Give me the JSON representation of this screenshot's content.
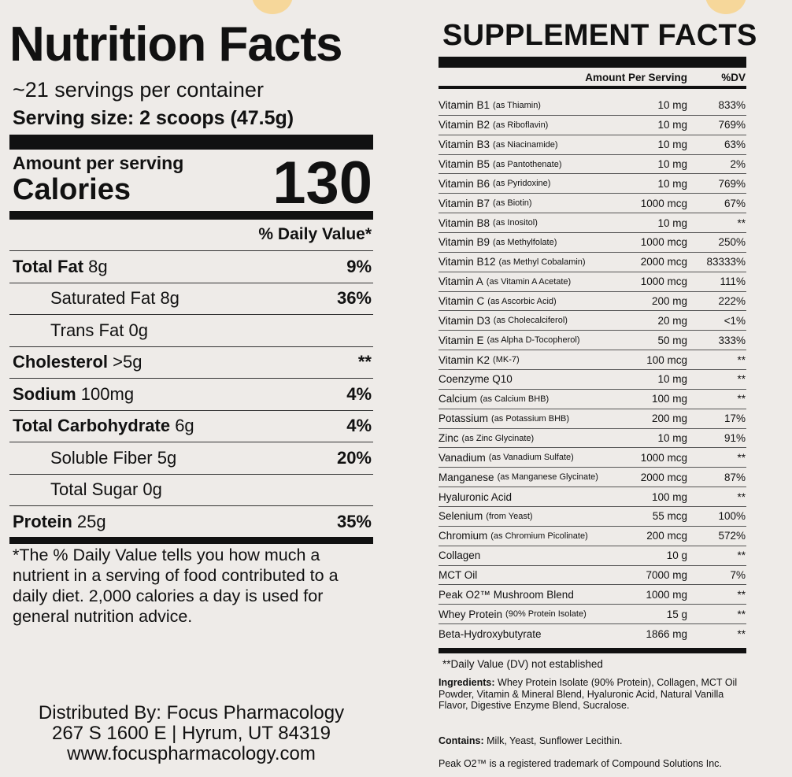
{
  "nutrition": {
    "title": "Nutrition Facts",
    "servings": "~21 servings per container",
    "serving_size": "Serving size: 2 scoops (47.5g)",
    "amount_label": "Amount per serving",
    "calories_label": "Calories",
    "calories": "130",
    "dv_header": "% Daily Value*",
    "rows": [
      {
        "name": "Total Fat",
        "amount": "8g",
        "dv": "9%"
      },
      {
        "name": "Saturated Fat",
        "amount": "8g",
        "dv": "36%"
      },
      {
        "name": "Trans Fat",
        "amount": "0g"
      },
      {
        "name": "Cholesterol",
        "amount": ">5g",
        "dv": "**"
      },
      {
        "name": "Sodium",
        "amount": "100mg",
        "dv": "4%"
      },
      {
        "name": "Total Carbohydrate",
        "amount": "6g",
        "dv": "4%"
      },
      {
        "name": "Soluble Fiber",
        "amount": "5g",
        "dv": "20%"
      },
      {
        "name": "Total Sugar",
        "amount": "0g"
      },
      {
        "name": "Protein",
        "amount": "25g",
        "dv": "35%"
      }
    ],
    "footnote": "*The % Daily Value tells you how much a nutrient in a serving of food contributed to a daily diet. 2,000 calories a day is used for general nutrition advice."
  },
  "distributor": [
    "Distributed By: Focus Pharmacology",
    "267 S 1600 E | Hyrum, UT 84319",
    "www.focuspharmacology.com"
  ],
  "supplement": {
    "title": "SUPPLEMENT FACTS",
    "amount_header": "Amount Per Serving",
    "dv_header": "%DV",
    "rows": [
      {
        "name": "Vitamin B1",
        "source": "(as Thiamin)",
        "amount": "10 mg",
        "dv": "833%"
      },
      {
        "name": "Vitamin B2",
        "source": "(as Riboflavin)",
        "amount": "10 mg",
        "dv": "769%"
      },
      {
        "name": "Vitamin B3",
        "source": "(as Niacinamide)",
        "amount": "10 mg",
        "dv": "63%"
      },
      {
        "name": "Vitamin B5",
        "source": "(as Pantothenate)",
        "amount": "10 mg",
        "dv": "2%"
      },
      {
        "name": "Vitamin B6",
        "source": "(as Pyridoxine)",
        "amount": "10 mg",
        "dv": "769%"
      },
      {
        "name": "Vitamin B7",
        "source": "(as Biotin)",
        "amount": "1000 mcg",
        "dv": "67%"
      },
      {
        "name": "Vitamin B8",
        "source": "(as Inositol)",
        "amount": "10 mg",
        "dv": "**"
      },
      {
        "name": "Vitamin B9",
        "source": "(as Methylfolate)",
        "amount": "1000 mcg",
        "dv": "250%"
      },
      {
        "name": "Vitamin B12",
        "source": "(as Methyl Cobalamin)",
        "amount": "2000 mcg",
        "dv": "83333%"
      },
      {
        "name": "Vitamin A",
        "source": "(as Vitamin A Acetate)",
        "amount": "1000 mcg",
        "dv": "111%"
      },
      {
        "name": "Vitamin C",
        "source": "(as Ascorbic Acid)",
        "amount": "200 mg",
        "dv": "222%"
      },
      {
        "name": "Vitamin D3",
        "source": "(as Cholecalciferol)",
        "amount": "20 mg",
        "dv": "<1%"
      },
      {
        "name": "Vitamin E",
        "source": "(as Alpha D-Tocopherol)",
        "amount": "50 mg",
        "dv": "333%"
      },
      {
        "name": "Vitamin K2",
        "source": "(MK-7)",
        "amount": "100 mcg",
        "dv": "**"
      },
      {
        "name": "Coenzyme Q10",
        "amount": "10 mg",
        "dv": "**"
      },
      {
        "name": "Calcium",
        "source": "(as Calcium BHB)",
        "amount": "100 mg",
        "dv": "**"
      },
      {
        "name": "Potassium",
        "source": "(as Potassium BHB)",
        "amount": "200 mg",
        "dv": "17%"
      },
      {
        "name": "Zinc",
        "source": "(as Zinc Glycinate)",
        "amount": "10 mg",
        "dv": "91%"
      },
      {
        "name": "Vanadium",
        "source": "(as Vanadium Sulfate)",
        "amount": "1000 mcg",
        "dv": "**"
      },
      {
        "name": "Manganese",
        "source": "(as Manganese Glycinate)",
        "amount": "2000 mcg",
        "dv": "87%"
      },
      {
        "name": "Hyaluronic Acid",
        "amount": "100 mg",
        "dv": "**"
      },
      {
        "name": "Selenium",
        "source": "(from Yeast)",
        "amount": "55 mcg",
        "dv": "100%"
      },
      {
        "name": "Chromium",
        "source": "(as Chromium Picolinate)",
        "amount": "200 mcg",
        "dv": "572%"
      },
      {
        "name": "Collagen",
        "amount": "10 g",
        "dv": "**"
      },
      {
        "name": "MCT Oil",
        "amount": "7000 mg",
        "dv": "7%"
      },
      {
        "name": "Peak O2™ Mushroom Blend",
        "amount": "1000 mg",
        "dv": "**"
      },
      {
        "name": "Whey Protein",
        "source": "(90% Protein Isolate)",
        "amount": "15 g",
        "dv": "**"
      },
      {
        "name": "Beta-Hydroxybutyrate",
        "amount": "1866 mg",
        "dv": "**"
      }
    ],
    "dv_note": "**Daily Value (DV) not established",
    "ingredients_label": "Ingredients:",
    "ingredients": "Whey Protein Isolate (90% Protein), Collagen, MCT Oil Powder, Vitamin & Mineral Blend, Hyaluronic Acid, Natural Vanilla Flavor, Digestive Enzyme Blend, Sucralose.",
    "contains_label": "Contains:",
    "contains": "Milk, Yeast, Sunflower Lecithin.",
    "trademark": "Peak O2™ is a registered trademark of Compound Solutions Inc."
  }
}
